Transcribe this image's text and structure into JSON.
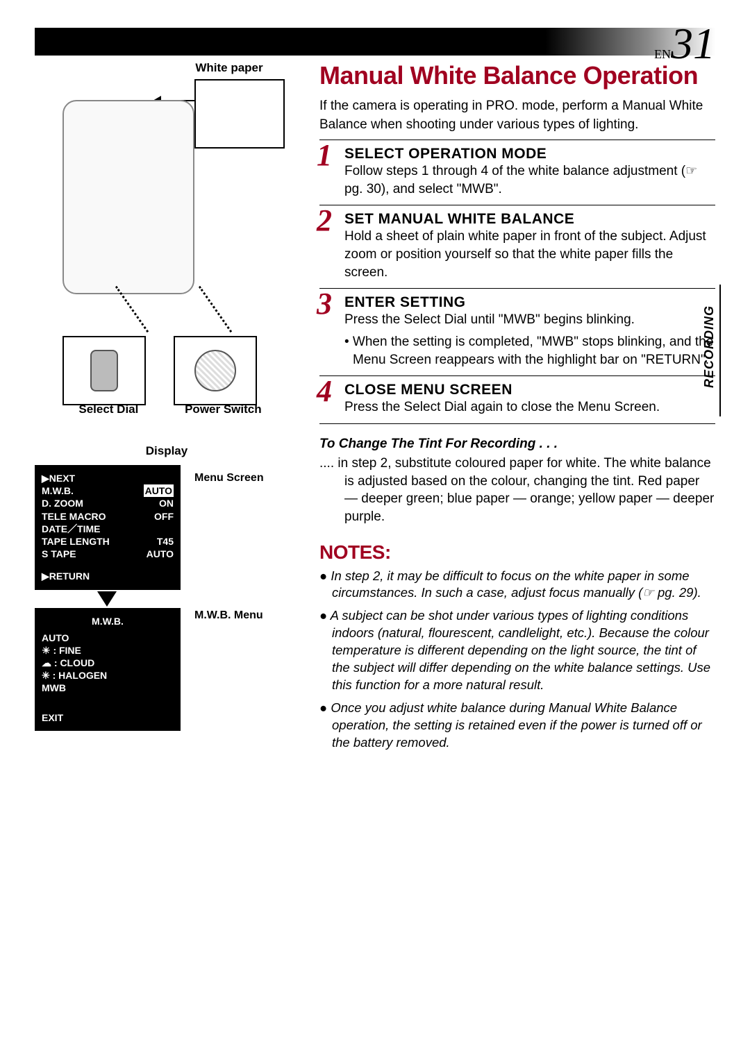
{
  "page": {
    "prefix": "EN",
    "number": "31"
  },
  "sideTab": "RECORDING",
  "labels": {
    "whitePaper": "White paper",
    "selectDial": "Select Dial",
    "powerSwitch": "Power Switch",
    "display": "Display",
    "menuScreen": "Menu Screen",
    "mwbMenu": "M.W.B. Menu"
  },
  "menuScreen": {
    "rows": [
      {
        "left": "▶NEXT",
        "right": ""
      },
      {
        "left": "M.W.B.",
        "right": "AUTO",
        "rightHL": true
      },
      {
        "left": "D. ZOOM",
        "right": "ON"
      },
      {
        "left": "TELE MACRO",
        "right": "OFF"
      },
      {
        "left": "DATE／TIME",
        "right": ""
      },
      {
        "left": "TAPE LENGTH",
        "right": "T45"
      },
      {
        "left": "S TAPE",
        "right": "AUTO"
      }
    ],
    "return": "▶RETURN"
  },
  "mwbMenu": {
    "title": "M.W.B.",
    "rows": [
      "AUTO",
      "☀ : FINE",
      "☁ : CLOUD",
      "✳ : HALOGEN"
    ],
    "mwb": "MWB",
    "exit": "EXIT"
  },
  "title": "Manual White Balance Operation",
  "intro": "If the camera is operating in PRO. mode, perform a Manual White Balance when shooting under various types of lighting.",
  "steps": [
    {
      "num": "1",
      "title": "SELECT OPERATION MODE",
      "body": "Follow steps 1 through 4 of the white balance adjustment (☞ pg. 30), and select \"MWB\"."
    },
    {
      "num": "2",
      "title": "SET MANUAL WHITE BALANCE",
      "body": "Hold a sheet of plain white paper in front of the subject. Adjust zoom or position yourself so that the white paper fills the screen."
    },
    {
      "num": "3",
      "title": "ENTER SETTING",
      "body": "Press the Select Dial until \"MWB\" begins blinking.",
      "bullet": "• When the setting is completed, \"MWB\" stops blinking, and the Menu Screen reappears with the highlight bar on \"RETURN\"."
    },
    {
      "num": "4",
      "title": "CLOSE MENU SCREEN",
      "body": "Press the Select Dial again to close the Menu Screen."
    }
  ],
  "tint": {
    "title": "To Change The Tint For Recording . . .",
    "body": ".... in step 2, substitute coloured paper for white. The white balance is adjusted based on the colour, changing the tint. Red paper — deeper green; blue paper — orange; yellow paper — deeper purple."
  },
  "notesTitle": "NOTES:",
  "notes": [
    "● In step 2, it may be difficult to focus on the white paper in some circumstances. In such a case, adjust focus manually (☞ pg. 29).",
    "● A subject can be shot under various types of lighting conditions indoors (natural, flourescent, candlelight, etc.). Because the colour temperature is different depending on the light source, the tint of the subject will differ depending on the white balance settings. Use this function for a more natural result.",
    "● Once you adjust white balance during Manual White Balance operation, the setting is retained even if the power is turned off or the battery removed."
  ],
  "colors": {
    "accent": "#a00020",
    "text": "#000000",
    "bg": "#ffffff"
  }
}
